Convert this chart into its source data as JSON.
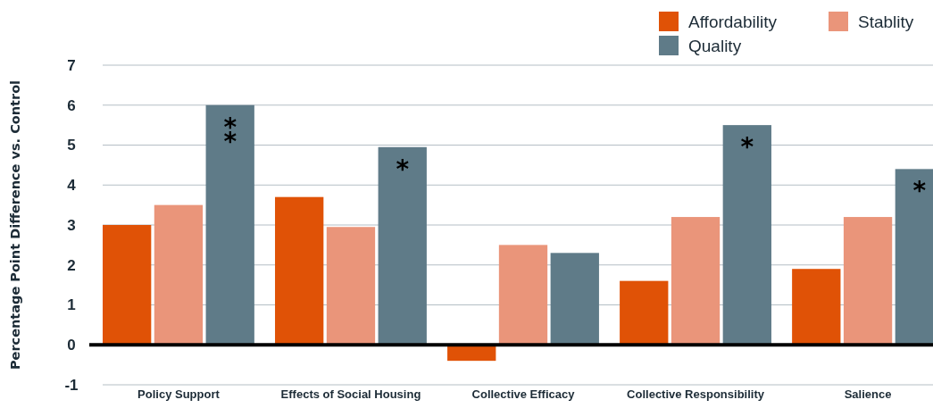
{
  "chart_data": {
    "type": "bar",
    "ylabel": "Percentage Point Difference vs. Control",
    "categories": [
      "Policy Support",
      "Effects of Social Housing",
      "Collective Efficacy",
      "Collective Responsibility",
      "Salience"
    ],
    "series": [
      {
        "name": "Affordability",
        "color": "#e05206",
        "values": [
          3.0,
          3.7,
          -0.4,
          1.6,
          1.9
        ]
      },
      {
        "name": "Stablity",
        "color": "#ea957a",
        "values": [
          3.5,
          2.95,
          2.5,
          3.2,
          3.2
        ]
      },
      {
        "name": "Quality",
        "color": "#5f7b88",
        "values": [
          6.0,
          4.95,
          2.3,
          5.5,
          4.4
        ]
      }
    ],
    "ylim": [
      -1,
      7
    ],
    "yticks": [
      -1,
      0,
      1,
      2,
      3,
      4,
      5,
      6,
      7
    ],
    "grid": "y",
    "legend": "top right",
    "annotations": [
      "**",
      "*",
      "*",
      "*"
    ]
  }
}
